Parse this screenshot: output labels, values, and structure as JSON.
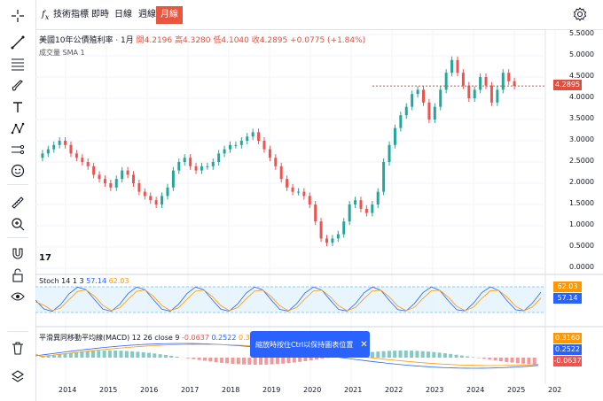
{
  "toolbar": {
    "items": [
      "crosshair-icon",
      "trendline-icon",
      "fib-icon",
      "brush-icon",
      "text-icon",
      "pattern-icon",
      "forecast-icon",
      "emoji-icon",
      "ruler-icon",
      "zoom-icon",
      "magnet-icon",
      "lock-icon",
      "hide-icon",
      "trash-icon",
      "layers-icon"
    ]
  },
  "topbar": {
    "fx_symbol": "f",
    "fx_label": "x",
    "indicators_label": "技術指標",
    "tabs": [
      "即時",
      "日線",
      "週線",
      "月線"
    ],
    "active_tab": "月線"
  },
  "legend": {
    "title": "美國10年公債殖利率 · 1月",
    "open": "開4.2196",
    "high": "高4.3280",
    "low": "低4.1040",
    "close": "收4.2895",
    "change": "+0.0775 (+1.84%)",
    "volume": "成交量 SMA 1"
  },
  "price_axis": [
    "5.5000",
    "5.0000",
    "4.5000",
    "4.0000",
    "3.5000",
    "3.0000",
    "2.5000",
    "2.0000",
    "1.5000",
    "1.0000",
    "0.5000",
    "0.0000"
  ],
  "last_price": "4.2895",
  "x_axis": [
    "2014",
    "2015",
    "2016",
    "2017",
    "2018",
    "2019",
    "2020",
    "2021",
    "2022",
    "2023",
    "2024",
    "2025",
    "202"
  ],
  "stoch": {
    "label": "Stoch 14 1 3",
    "k": "57.14",
    "d": "62.03"
  },
  "macd": {
    "label": "平滑異同移動平均線(MACD) 12 26 close 9",
    "hist": "-0.0637",
    "macd": "0.2522",
    "signal": "0.3160",
    "axis_bottom": "-0.0637"
  },
  "toast": {
    "text": "縮放時按住Ctrl以保持圖表位置",
    "close": "✕"
  },
  "tv_logo": "17",
  "colors": {
    "up": "#26a69a",
    "down": "#ef5350",
    "accent": "#e8563f",
    "macd_line": "#2962ff",
    "signal_line": "#ff9800"
  }
}
